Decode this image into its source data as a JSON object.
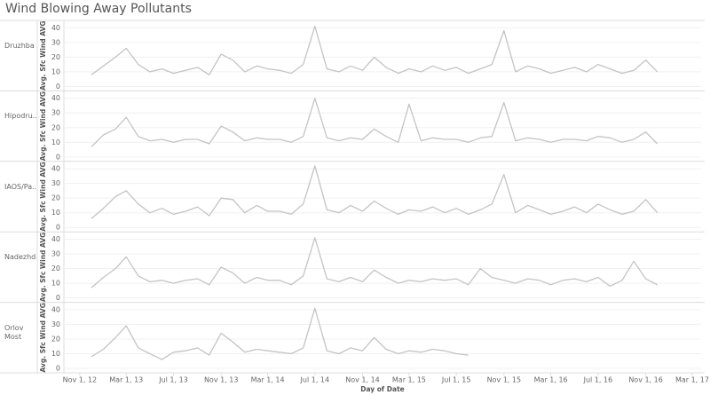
{
  "header": {
    "title": "Wind Blowing Away Pollutants"
  },
  "chart_data": [
    {
      "type": "line",
      "panel_label": "Druzhba",
      "y_label": "Avg. Sfc Wind AVG",
      "x": [
        "2012-12-01",
        "2013-01-01",
        "2013-02-01",
        "2013-03-01",
        "2013-04-01",
        "2013-05-01",
        "2013-06-01",
        "2013-07-01",
        "2013-08-01",
        "2013-09-01",
        "2013-10-01",
        "2013-11-01",
        "2013-12-01",
        "2014-01-01",
        "2014-02-01",
        "2014-03-01",
        "2014-04-01",
        "2014-05-01",
        "2014-06-01",
        "2014-07-01",
        "2014-08-01",
        "2014-09-01",
        "2014-10-01",
        "2014-11-01",
        "2014-12-01",
        "2015-01-01",
        "2015-02-01",
        "2015-03-01",
        "2015-04-01",
        "2015-05-01",
        "2015-06-01",
        "2015-07-01",
        "2015-08-01",
        "2015-09-01",
        "2015-10-01",
        "2015-11-01",
        "2015-12-01",
        "2016-01-01",
        "2016-02-01",
        "2016-03-01",
        "2016-04-01",
        "2016-05-01",
        "2016-06-01",
        "2016-07-01",
        "2016-08-01",
        "2016-09-01",
        "2016-10-01",
        "2016-11-01",
        "2016-12-01"
      ],
      "values": [
        8,
        14,
        20,
        26,
        15,
        10,
        12,
        9,
        11,
        13,
        8,
        22,
        18,
        10,
        14,
        12,
        11,
        9,
        15,
        41,
        12,
        10,
        14,
        11,
        20,
        13,
        9,
        12,
        10,
        14,
        11,
        13,
        9,
        12,
        15,
        38,
        10,
        14,
        12,
        9,
        11,
        13,
        10,
        15,
        12,
        9,
        11,
        18,
        10
      ],
      "color": "#c4c4c4",
      "xlim": [
        "2012-09-21",
        "2017-03-24"
      ],
      "ylim": [
        -3,
        45
      ],
      "yticks": [
        0,
        10,
        20,
        30,
        40
      ]
    },
    {
      "type": "line",
      "panel_label": "Hipodru...",
      "y_label": "Avg. Sfc Wind AVG",
      "x": [
        "2012-12-01",
        "2013-01-01",
        "2013-02-01",
        "2013-03-01",
        "2013-04-01",
        "2013-05-01",
        "2013-06-01",
        "2013-07-01",
        "2013-08-01",
        "2013-09-01",
        "2013-10-01",
        "2013-11-01",
        "2013-12-01",
        "2014-01-01",
        "2014-02-01",
        "2014-03-01",
        "2014-04-01",
        "2014-05-01",
        "2014-06-01",
        "2014-07-01",
        "2014-08-01",
        "2014-09-01",
        "2014-10-01",
        "2014-11-01",
        "2014-12-01",
        "2015-01-01",
        "2015-02-01",
        "2015-03-01",
        "2015-04-01",
        "2015-05-01",
        "2015-06-01",
        "2015-07-01",
        "2015-08-01",
        "2015-09-01",
        "2015-10-01",
        "2015-11-01",
        "2015-12-01",
        "2016-01-01",
        "2016-02-01",
        "2016-03-01",
        "2016-04-01",
        "2016-05-01",
        "2016-06-01",
        "2016-07-01",
        "2016-08-01",
        "2016-09-01",
        "2016-10-01",
        "2016-11-01",
        "2016-12-01"
      ],
      "values": [
        7,
        15,
        19,
        27,
        14,
        11,
        12,
        10,
        12,
        12,
        9,
        21,
        17,
        11,
        13,
        12,
        12,
        10,
        14,
        40,
        13,
        11,
        13,
        12,
        19,
        14,
        10,
        36,
        11,
        13,
        12,
        12,
        10,
        13,
        14,
        37,
        11,
        13,
        12,
        10,
        12,
        12,
        11,
        14,
        13,
        10,
        12,
        17,
        9
      ],
      "color": "#c4c4c4",
      "xlim": [
        "2012-09-21",
        "2017-03-24"
      ],
      "ylim": [
        -3,
        45
      ],
      "yticks": [
        0,
        10,
        20,
        30,
        40
      ]
    },
    {
      "type": "line",
      "panel_label": "IAOS/Pa...",
      "y_label": "Avg. Sfc Wind AVG",
      "x": [
        "2012-12-01",
        "2013-01-01",
        "2013-02-01",
        "2013-03-01",
        "2013-04-01",
        "2013-05-01",
        "2013-06-01",
        "2013-07-01",
        "2013-08-01",
        "2013-09-01",
        "2013-10-01",
        "2013-11-01",
        "2013-12-01",
        "2014-01-01",
        "2014-02-01",
        "2014-03-01",
        "2014-04-01",
        "2014-05-01",
        "2014-06-01",
        "2014-07-01",
        "2014-08-01",
        "2014-09-01",
        "2014-10-01",
        "2014-11-01",
        "2014-12-01",
        "2015-01-01",
        "2015-02-01",
        "2015-03-01",
        "2015-04-01",
        "2015-05-01",
        "2015-06-01",
        "2015-07-01",
        "2015-08-01",
        "2015-09-01",
        "2015-10-01",
        "2015-11-01",
        "2015-12-01",
        "2016-01-01",
        "2016-02-01",
        "2016-03-01",
        "2016-04-01",
        "2016-05-01",
        "2016-06-01",
        "2016-07-01",
        "2016-08-01",
        "2016-09-01",
        "2016-10-01",
        "2016-11-01",
        "2016-12-01"
      ],
      "values": [
        6,
        13,
        21,
        25,
        16,
        10,
        13,
        9,
        11,
        14,
        8,
        20,
        19,
        10,
        15,
        11,
        11,
        9,
        16,
        42,
        12,
        10,
        15,
        11,
        18,
        13,
        9,
        12,
        11,
        14,
        10,
        13,
        9,
        12,
        16,
        36,
        10,
        15,
        12,
        9,
        11,
        14,
        10,
        16,
        12,
        9,
        11,
        19,
        10
      ],
      "color": "#c4c4c4",
      "xlim": [
        "2012-09-21",
        "2017-03-24"
      ],
      "ylim": [
        -3,
        45
      ],
      "yticks": [
        0,
        10,
        20,
        30,
        40
      ]
    },
    {
      "type": "line",
      "panel_label": "Nadezhda",
      "y_label": "Avg. Sfc Wind AVG",
      "x": [
        "2012-12-01",
        "2013-01-01",
        "2013-02-01",
        "2013-03-01",
        "2013-04-01",
        "2013-05-01",
        "2013-06-01",
        "2013-07-01",
        "2013-08-01",
        "2013-09-01",
        "2013-10-01",
        "2013-11-01",
        "2013-12-01",
        "2014-01-01",
        "2014-02-01",
        "2014-03-01",
        "2014-04-01",
        "2014-05-01",
        "2014-06-01",
        "2014-07-01",
        "2014-08-01",
        "2014-09-01",
        "2014-10-01",
        "2014-11-01",
        "2014-12-01",
        "2015-01-01",
        "2015-02-01",
        "2015-03-01",
        "2015-04-01",
        "2015-05-01",
        "2015-06-01",
        "2015-07-01",
        "2015-08-01",
        "2015-09-01",
        "2015-10-01",
        "2015-11-01",
        "2015-12-01",
        "2016-01-01",
        "2016-02-01",
        "2016-03-01",
        "2016-04-01",
        "2016-05-01",
        "2016-06-01",
        "2016-07-01",
        "2016-08-01",
        "2016-09-01",
        "2016-10-01",
        "2016-11-01",
        "2016-12-01"
      ],
      "values": [
        7,
        14,
        20,
        28,
        15,
        11,
        12,
        10,
        12,
        13,
        9,
        21,
        17,
        10,
        14,
        12,
        12,
        9,
        15,
        41,
        13,
        11,
        14,
        11,
        19,
        14,
        10,
        12,
        11,
        13,
        12,
        13,
        9,
        20,
        14,
        12,
        10,
        13,
        12,
        9,
        12,
        13,
        11,
        14,
        8,
        12,
        25,
        13,
        9
      ],
      "color": "#c4c4c4",
      "xlim": [
        "2012-09-21",
        "2017-03-24"
      ],
      "ylim": [
        -3,
        45
      ],
      "yticks": [
        0,
        10,
        20,
        30,
        40
      ]
    },
    {
      "type": "line",
      "panel_label": "Orlov Most",
      "y_label": "Avg. Sfc Wind AVG",
      "x": [
        "2012-12-01",
        "2013-01-01",
        "2013-02-01",
        "2013-03-01",
        "2013-04-01",
        "2013-05-01",
        "2013-06-01",
        "2013-07-01",
        "2013-08-01",
        "2013-09-01",
        "2013-10-01",
        "2013-11-01",
        "2013-12-01",
        "2014-01-01",
        "2014-02-01",
        "2014-03-01",
        "2014-04-01",
        "2014-05-01",
        "2014-06-01",
        "2014-07-01",
        "2014-08-01",
        "2014-09-01",
        "2014-10-01",
        "2014-11-01",
        "2014-12-01",
        "2015-01-01",
        "2015-02-01",
        "2015-03-01",
        "2015-04-01",
        "2015-05-01",
        "2015-06-01",
        "2015-07-01",
        "2015-08-01",
        "2015-09-01",
        "2015-10-01",
        "2015-11-01",
        "2015-12-01",
        "2016-01-01",
        "2016-02-01",
        "2016-03-01",
        "2016-04-01",
        "2016-05-01",
        "2016-06-01",
        "2016-07-01",
        "2016-08-01",
        "2016-09-01",
        "2016-10-01",
        "2016-11-01",
        "2016-12-01"
      ],
      "values": [
        8,
        13,
        21,
        29,
        14,
        10,
        6,
        11,
        12,
        14,
        9,
        24,
        18,
        11,
        13,
        12,
        11,
        10,
        14,
        41,
        12,
        10,
        14,
        12,
        21,
        13,
        10,
        12,
        11,
        13,
        12,
        10,
        9,
        null,
        null,
        null,
        null,
        null,
        null,
        null,
        null,
        null,
        null,
        null,
        null,
        null,
        null,
        null,
        null
      ],
      "color": "#c4c4c4",
      "xlim": [
        "2012-09-21",
        "2017-03-24"
      ],
      "ylim": [
        -3,
        45
      ],
      "yticks": [
        0,
        10,
        20,
        30,
        40
      ],
      "x_label": "Day of Date",
      "xticks": [
        {
          "value": "2012-11-01",
          "label": "Nov 1, 12"
        },
        {
          "value": "2013-03-01",
          "label": "Mar 1, 13"
        },
        {
          "value": "2013-07-01",
          "label": "Jul 1, 13"
        },
        {
          "value": "2013-11-01",
          "label": "Nov 1, 13"
        },
        {
          "value": "2014-03-01",
          "label": "Mar 1, 14"
        },
        {
          "value": "2014-07-01",
          "label": "Jul 1, 14"
        },
        {
          "value": "2014-11-01",
          "label": "Nov 1, 14"
        },
        {
          "value": "2015-03-01",
          "label": "Mar 1, 15"
        },
        {
          "value": "2015-07-01",
          "label": "Jul 1, 15"
        },
        {
          "value": "2015-11-01",
          "label": "Nov 1, 15"
        },
        {
          "value": "2016-03-01",
          "label": "Mar 1, 16"
        },
        {
          "value": "2016-07-01",
          "label": "Jul 1, 16"
        },
        {
          "value": "2016-11-01",
          "label": "Nov 1, 16"
        },
        {
          "value": "2017-03-01",
          "label": "Mar 1, 17"
        }
      ]
    }
  ]
}
